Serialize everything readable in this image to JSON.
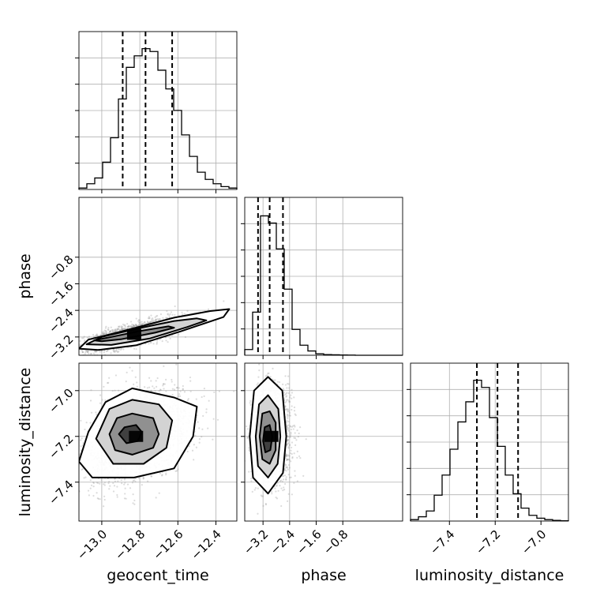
{
  "chart_data": {
    "type": "corner",
    "parameters": [
      "geocent_time",
      "phase",
      "luminosity_distance"
    ],
    "axis_labels": {
      "x": [
        "geocent_time",
        "phase",
        "luminosity_distance"
      ],
      "y": [
        "phase",
        "luminosity_distance"
      ]
    },
    "ranges": {
      "geocent_time": [
        -13.12,
        -12.29
      ],
      "phase": [
        -3.75,
        1.0
      ],
      "luminosity_distance": [
        -7.57,
        -6.88
      ]
    },
    "ticks": {
      "geocent_time": [
        {
          "v": -13.0,
          "label": "−13.0"
        },
        {
          "v": -12.8,
          "label": "−12.8"
        },
        {
          "v": -12.6,
          "label": "−12.6"
        },
        {
          "v": -12.4,
          "label": "−12.4"
        }
      ],
      "phase": [
        {
          "v": -3.2,
          "label": "−3.2"
        },
        {
          "v": -2.4,
          "label": "−2.4"
        },
        {
          "v": -1.6,
          "label": "−1.6"
        },
        {
          "v": -0.8,
          "label": "−0.8"
        }
      ],
      "luminosity_distance": [
        {
          "v": -7.4,
          "label": "−7.4"
        },
        {
          "v": -7.2,
          "label": "−7.2"
        },
        {
          "v": -7.0,
          "label": "−7.0"
        }
      ]
    },
    "grid": true,
    "histograms": [
      {
        "parameter": "geocent_time",
        "counts": [
          0.01,
          0.04,
          0.08,
          0.19,
          0.36,
          0.63,
          0.85,
          0.93,
          0.98,
          0.96,
          0.83,
          0.7,
          0.55,
          0.38,
          0.23,
          0.12,
          0.07,
          0.04,
          0.02,
          0.01
        ],
        "quantiles": [
          -12.89,
          -12.77,
          -12.63
        ]
      },
      {
        "parameter": "phase",
        "counts": [
          0.04,
          0.3,
          0.97,
          0.92,
          0.74,
          0.46,
          0.18,
          0.07,
          0.03,
          0.01,
          0.005,
          0.003,
          0.002,
          0.001,
          0.0,
          0.0,
          0.0,
          0.0,
          0.0,
          0.0
        ],
        "quantiles": [
          -3.35,
          -3.0,
          -2.6
        ]
      },
      {
        "parameter": "luminosity_distance",
        "counts": [
          0.01,
          0.03,
          0.07,
          0.18,
          0.32,
          0.5,
          0.69,
          0.83,
          0.98,
          0.93,
          0.72,
          0.52,
          0.32,
          0.19,
          0.09,
          0.04,
          0.02,
          0.01,
          0.005,
          0.002
        ],
        "quantiles": [
          -7.28,
          -7.19,
          -7.1
        ]
      }
    ],
    "pairs": [
      {
        "x": "geocent_time",
        "y": "phase",
        "mean": [
          -12.83,
          -3.12
        ],
        "sd": [
          0.13,
          0.24
        ],
        "corr": 0.75,
        "contours": [
          [
            [
              -13.04,
              -3.3
            ],
            [
              -12.95,
              -3.2
            ],
            [
              -12.8,
              -3.02
            ],
            [
              -12.65,
              -2.88
            ],
            [
              -12.62,
              -2.92
            ],
            [
              -12.72,
              -3.07
            ],
            [
              -12.9,
              -3.27
            ],
            [
              -13.0,
              -3.33
            ]
          ],
          [
            [
              -13.08,
              -3.42
            ],
            [
              -13.0,
              -3.2
            ],
            [
              -12.8,
              -2.93
            ],
            [
              -12.62,
              -2.72
            ],
            [
              -12.5,
              -2.64
            ],
            [
              -12.45,
              -2.7
            ],
            [
              -12.55,
              -2.9
            ],
            [
              -12.75,
              -3.25
            ],
            [
              -12.95,
              -3.44
            ]
          ],
          [
            [
              -13.12,
              -3.55
            ],
            [
              -13.07,
              -3.28
            ],
            [
              -12.9,
              -3.04
            ],
            [
              -12.62,
              -2.62
            ],
            [
              -12.43,
              -2.42
            ],
            [
              -12.33,
              -2.36
            ],
            [
              -12.36,
              -2.6
            ],
            [
              -12.58,
              -3.02
            ],
            [
              -12.82,
              -3.45
            ],
            [
              -13.02,
              -3.59
            ]
          ]
        ]
      },
      {
        "x": "geocent_time",
        "y": "luminosity_distance",
        "mean": [
          -12.82,
          -7.2
        ],
        "sd": [
          0.14,
          0.1
        ],
        "corr": 0.35,
        "contours": [
          [
            [
              -12.91,
              -7.19
            ],
            [
              -12.88,
              -7.16
            ],
            [
              -12.82,
              -7.15
            ],
            [
              -12.79,
              -7.18
            ],
            [
              -12.81,
              -7.22
            ],
            [
              -12.87,
              -7.23
            ]
          ],
          [
            [
              -12.96,
              -7.19
            ],
            [
              -12.92,
              -7.12
            ],
            [
              -12.84,
              -7.1
            ],
            [
              -12.73,
              -7.12
            ],
            [
              -12.7,
              -7.19
            ],
            [
              -12.73,
              -7.25
            ],
            [
              -12.84,
              -7.28
            ],
            [
              -12.93,
              -7.26
            ]
          ],
          [
            [
              -13.03,
              -7.21
            ],
            [
              -12.96,
              -7.08
            ],
            [
              -12.84,
              -7.04
            ],
            [
              -12.7,
              -7.06
            ],
            [
              -12.63,
              -7.13
            ],
            [
              -12.66,
              -7.25
            ],
            [
              -12.78,
              -7.32
            ],
            [
              -12.94,
              -7.32
            ]
          ],
          [
            [
              -13.12,
              -7.31
            ],
            [
              -13.07,
              -7.18
            ],
            [
              -12.98,
              -7.05
            ],
            [
              -12.84,
              -6.99
            ],
            [
              -12.62,
              -7.03
            ],
            [
              -12.5,
              -7.07
            ],
            [
              -12.52,
              -7.2
            ],
            [
              -12.62,
              -7.34
            ],
            [
              -12.83,
              -7.38
            ],
            [
              -13.05,
              -7.38
            ]
          ]
        ]
      },
      {
        "x": "phase",
        "y": "luminosity_distance",
        "mean": [
          -2.95,
          -7.2
        ],
        "sd": [
          0.28,
          0.1
        ],
        "corr": 0.0,
        "contours": [
          [
            [
              -3.2,
              -7.22
            ],
            [
              -3.15,
              -7.16
            ],
            [
              -3.0,
              -7.15
            ],
            [
              -2.92,
              -7.2
            ],
            [
              -2.98,
              -7.26
            ],
            [
              -3.13,
              -7.27
            ]
          ],
          [
            [
              -3.3,
              -7.2
            ],
            [
              -3.22,
              -7.1
            ],
            [
              -3.0,
              -7.09
            ],
            [
              -2.82,
              -7.14
            ],
            [
              -2.82,
              -7.26
            ],
            [
              -3.0,
              -7.32
            ],
            [
              -3.22,
              -7.3
            ]
          ],
          [
            [
              -3.42,
              -7.2
            ],
            [
              -3.32,
              -7.06
            ],
            [
              -3.05,
              -7.02
            ],
            [
              -2.74,
              -7.08
            ],
            [
              -2.68,
              -7.2
            ],
            [
              -2.76,
              -7.32
            ],
            [
              -3.05,
              -7.38
            ],
            [
              -3.35,
              -7.33
            ]
          ],
          [
            [
              -3.6,
              -7.2
            ],
            [
              -3.47,
              -7.0
            ],
            [
              -3.05,
              -6.94
            ],
            [
              -2.62,
              -7.0
            ],
            [
              -2.5,
              -7.2
            ],
            [
              -2.6,
              -7.36
            ],
            [
              -3.05,
              -7.45
            ],
            [
              -3.5,
              -7.38
            ]
          ]
        ]
      }
    ]
  }
}
